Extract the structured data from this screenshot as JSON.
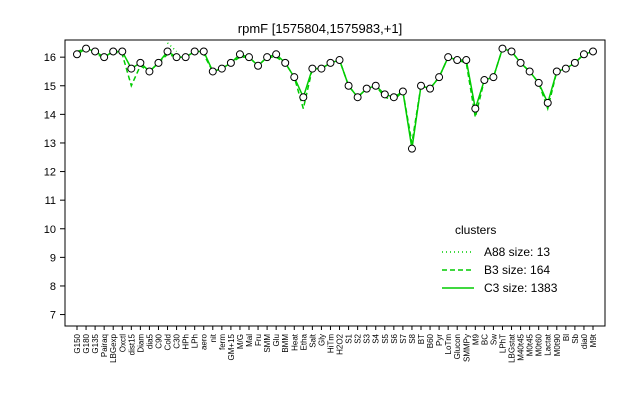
{
  "chart_data": {
    "type": "line",
    "title": "rpmF [1575804,1575983,+1]",
    "categories": [
      "G150",
      "G180",
      "G135",
      "Pairaq",
      "LBGexp",
      "Oxctl",
      "dist15",
      "Diam",
      "dia5",
      "C90",
      "Cold",
      "C30",
      "HPh",
      "LPh",
      "aero",
      "nit",
      "ferm",
      "GM+15",
      "M/G",
      "Mal",
      "Fru",
      "SMM",
      "Glu",
      "BMM",
      "Heat",
      "Etha",
      "Salt",
      "Gly",
      "HiTm",
      "H2O2",
      "S1",
      "S2",
      "S3",
      "S4",
      "S5",
      "S6",
      "S7",
      "S8",
      "BT",
      "B60",
      "Pyr",
      "LoTm",
      "Glucon",
      "SMMPy",
      "M9",
      "BC",
      "Sw",
      "LPhT",
      "LBGstat",
      "M40t45",
      "M0t45",
      "M0t60",
      "Lactat",
      "M0t90",
      "Bl",
      "Sb",
      "dia0",
      "M9t"
    ],
    "series": [
      {
        "name": "A88 size: 13",
        "color": "#00cc00",
        "style": "dotted",
        "values": [
          null,
          null,
          null,
          null,
          null,
          null,
          null,
          null,
          null,
          null,
          16.5,
          16.2,
          null,
          null,
          null,
          null,
          null,
          null,
          null,
          null,
          null,
          null,
          null,
          null,
          null,
          null,
          null,
          null,
          null,
          null,
          null,
          null,
          null,
          null,
          null,
          null,
          null,
          null,
          null,
          null,
          null,
          null,
          null,
          null,
          null,
          null,
          null,
          null,
          null,
          null,
          null,
          null,
          null,
          null,
          null,
          null,
          null,
          null
        ]
      },
      {
        "name": "B3 size: 164",
        "color": "#00cc00",
        "style": "dashed",
        "values": [
          16.2,
          16.3,
          16.1,
          16.0,
          16.2,
          16.1,
          15.0,
          15.7,
          15.5,
          15.8,
          16.1,
          16.0,
          16.0,
          16.2,
          16.1,
          15.5,
          15.6,
          15.8,
          16.0,
          16.0,
          15.7,
          16.0,
          16.0,
          15.8,
          15.3,
          14.2,
          15.6,
          15.6,
          15.8,
          15.9,
          15.0,
          14.6,
          14.9,
          15.0,
          14.6,
          14.5,
          14.8,
          13.0,
          15.0,
          14.9,
          15.3,
          16.0,
          15.9,
          15.8,
          13.9,
          15.2,
          15.3,
          16.3,
          16.2,
          15.8,
          15.5,
          15.1,
          14.2,
          15.5,
          15.6,
          15.8,
          16.1,
          16.2
        ]
      },
      {
        "name": "C3 size: 1383",
        "color": "#00cc00",
        "style": "solid",
        "values": [
          16.1,
          16.3,
          16.2,
          16.0,
          16.2,
          16.2,
          15.6,
          15.8,
          15.5,
          15.8,
          16.2,
          16.0,
          16.0,
          16.2,
          16.2,
          15.5,
          15.6,
          15.8,
          16.1,
          16.0,
          15.7,
          16.0,
          16.1,
          15.8,
          15.3,
          14.6,
          15.6,
          15.6,
          15.8,
          15.9,
          15.0,
          14.6,
          14.9,
          15.0,
          14.7,
          14.6,
          14.8,
          12.8,
          15.0,
          14.9,
          15.3,
          16.0,
          15.9,
          15.9,
          14.2,
          15.2,
          15.3,
          16.3,
          16.2,
          15.8,
          15.5,
          15.1,
          14.4,
          15.5,
          15.6,
          15.8,
          16.1,
          16.2
        ]
      }
    ],
    "legend_title": "clusters",
    "ylim": [
      6.6,
      16.6
    ],
    "yticks": [
      7,
      8,
      9,
      10,
      11,
      12,
      13,
      14,
      15,
      16
    ]
  }
}
